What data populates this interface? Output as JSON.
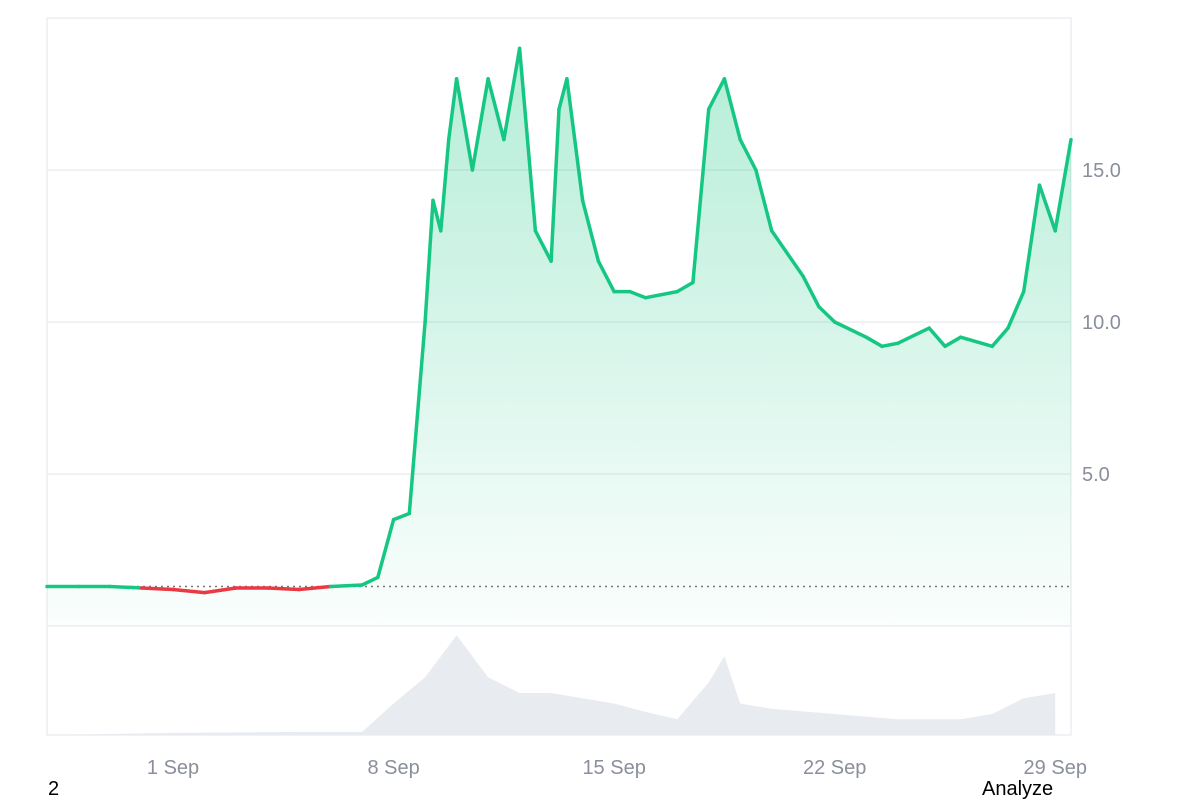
{
  "chart_data": {
    "type": "area",
    "title": "",
    "xlabel": "",
    "ylabel": "",
    "x_ticks": [
      "1 Sep",
      "8 Sep",
      "15 Sep",
      "22 Sep",
      "29 Sep"
    ],
    "y_ticks": [
      "5.0",
      "10.0",
      "15.0"
    ],
    "ylim": [
      0,
      20
    ],
    "baseline": 1.3,
    "grid": true,
    "colors": {
      "up": "#16c784",
      "down": "#ea3943",
      "volume": "#e8ecf1"
    },
    "series": [
      {
        "x": [
          "2024-08-28",
          "2024-08-29",
          "2024-08-30",
          "2024-08-31",
          "2024-09-01",
          "2024-09-02",
          "2024-09-03",
          "2024-09-04",
          "2024-09-05",
          "2024-09-06",
          "2024-09-07",
          "2024-09-07T12:00",
          "2024-09-08",
          "2024-09-08T12:00",
          "2024-09-09",
          "2024-09-09T06:00",
          "2024-09-09T12:00",
          "2024-09-09T18:00",
          "2024-09-10",
          "2024-09-10T12:00",
          "2024-09-11",
          "2024-09-11T12:00",
          "2024-09-12",
          "2024-09-12T12:00",
          "2024-09-13",
          "2024-09-13T06:00",
          "2024-09-13T12:00",
          "2024-09-14",
          "2024-09-14T12:00",
          "2024-09-15",
          "2024-09-15T12:00",
          "2024-09-16",
          "2024-09-17",
          "2024-09-17T12:00",
          "2024-09-18",
          "2024-09-18T12:00",
          "2024-09-19",
          "2024-09-19T12:00",
          "2024-09-20",
          "2024-09-21",
          "2024-09-21T12:00",
          "2024-09-22",
          "2024-09-23",
          "2024-09-23T12:00",
          "2024-09-24",
          "2024-09-25",
          "2024-09-25T12:00",
          "2024-09-26",
          "2024-09-27",
          "2024-09-27T12:00",
          "2024-09-28",
          "2024-09-28T12:00",
          "2024-09-29",
          "2024-09-29T12:00"
        ],
        "values": [
          1.3,
          1.3,
          1.3,
          1.25,
          1.2,
          1.1,
          1.25,
          1.25,
          1.2,
          1.3,
          1.35,
          1.6,
          3.5,
          3.7,
          10,
          14,
          13,
          16,
          18,
          15,
          18,
          16,
          19,
          13,
          12,
          17,
          18,
          14,
          12,
          11,
          11,
          10.8,
          11,
          11.3,
          17,
          18,
          16,
          15,
          13,
          11.5,
          10.5,
          10,
          9.5,
          9.2,
          9.3,
          9.8,
          9.2,
          9.5,
          9.2,
          9.8,
          11,
          14.5,
          13,
          16
        ]
      }
    ],
    "volume": {
      "x": [
        "2024-08-28",
        "2024-09-01",
        "2024-09-05",
        "2024-09-07",
        "2024-09-08",
        "2024-09-09",
        "2024-09-10",
        "2024-09-11",
        "2024-09-12",
        "2024-09-13",
        "2024-09-14",
        "2024-09-15",
        "2024-09-16",
        "2024-09-17",
        "2024-09-18",
        "2024-09-18T12:00",
        "2024-09-19",
        "2024-09-20",
        "2024-09-22",
        "2024-09-24",
        "2024-09-26",
        "2024-09-27",
        "2024-09-28",
        "2024-09-29"
      ],
      "values": [
        0,
        0.02,
        0.03,
        0.03,
        0.3,
        0.55,
        0.95,
        0.55,
        0.4,
        0.4,
        0.35,
        0.3,
        0.22,
        0.15,
        0.5,
        0.75,
        0.3,
        0.25,
        0.2,
        0.15,
        0.15,
        0.2,
        0.35,
        0.4
      ]
    }
  },
  "footer": {
    "left": "2",
    "right": "Analyze"
  }
}
